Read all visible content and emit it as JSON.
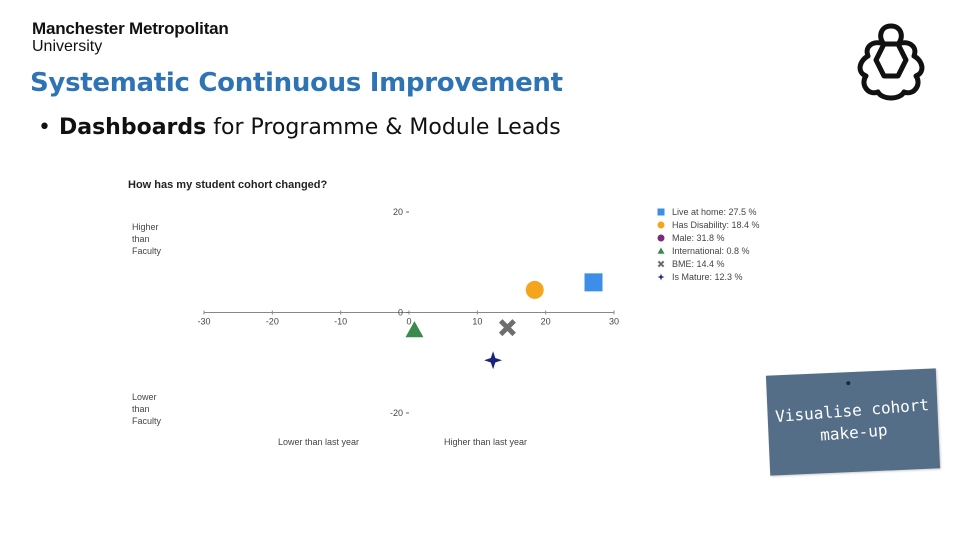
{
  "brand": {
    "line1": "Manchester Metropolitan",
    "line2": "University"
  },
  "slide": {
    "title": "Systematic Continuous Improvement",
    "bullet_strong": "Dashboards",
    "bullet_rest": " for Programme & Module Leads"
  },
  "note": {
    "text_line1": "Visualise cohort",
    "text_line2": "make-up"
  },
  "chart_data": {
    "type": "scatter",
    "title": "How has my student cohort changed?",
    "xlim": [
      -30,
      30
    ],
    "ylim": [
      -20,
      20
    ],
    "x_ticks": [
      -30,
      -20,
      -10,
      0,
      10,
      20,
      30
    ],
    "y_ticks": [
      20,
      0,
      -20
    ],
    "y_label_top": [
      "Higher",
      "than",
      "Faculty"
    ],
    "y_label_bottom": [
      "Lower",
      "than",
      "Faculty"
    ],
    "x_label_left": "Lower than last year",
    "x_label_right": "Higher than last year",
    "legend_position": "right",
    "series": [
      {
        "name": "Live at home: 27.5 %",
        "color": "#3d8ee6",
        "marker": "square",
        "x": 27,
        "y": 6
      },
      {
        "name": "Has Disability: 18.4 %",
        "color": "#f5a51b",
        "marker": "circle",
        "x": 18.4,
        "y": 4.5
      },
      {
        "name": "Male: 31.8 %",
        "color": "#7a2d7a",
        "marker": "circle",
        "x": null,
        "y": null
      },
      {
        "name": "International: 0.8 %",
        "color": "#3b8a4c",
        "marker": "triangle",
        "x": 0.8,
        "y": -3.5
      },
      {
        "name": "BME: 14.4 %",
        "color": "#6e6e6e",
        "marker": "cross",
        "x": 14.4,
        "y": -3
      },
      {
        "name": "Is Mature: 12.3 %",
        "color": "#1b237a",
        "marker": "star",
        "x": 12.3,
        "y": -9.5
      }
    ]
  }
}
